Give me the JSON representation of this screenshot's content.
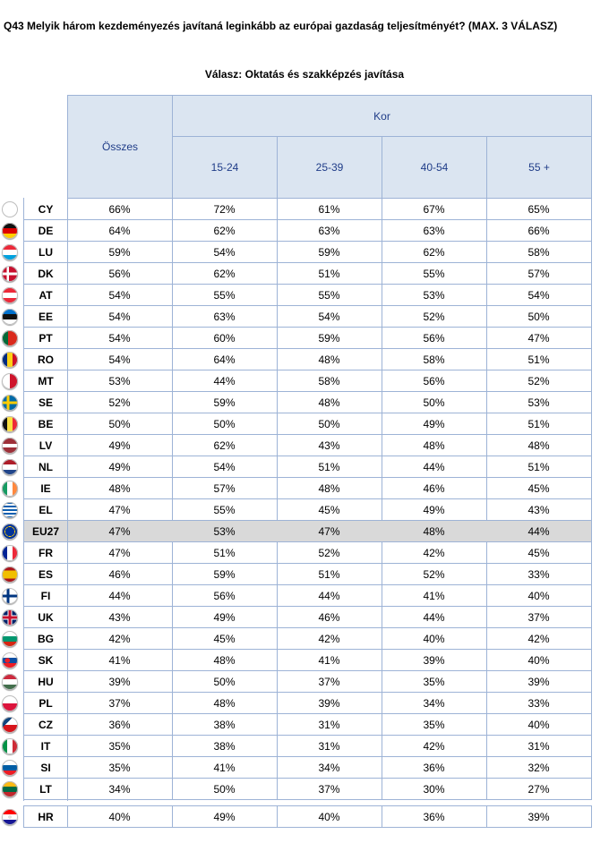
{
  "question": "Q43 Melyik három kezdeményezés javítaná leginkább az európai gazdaság teljesítményét? (MAX. 3 VÁLASZ)",
  "answer_label": "Válasz: Oktatás és szakképzés javítása",
  "header": {
    "total": "Összes",
    "age_group": "Kor",
    "age_columns": [
      "15-24",
      "25-39",
      "40-54",
      "55 +"
    ]
  },
  "colors": {
    "header_bg": "#dbe5f1",
    "border": "#9db3d6",
    "header_text": "#1f3c88",
    "highlight_row": "#d9d9d9"
  },
  "rows": [
    {
      "code": "CY",
      "flag": "flag-cyprus-icon",
      "values": [
        "66%",
        "72%",
        "61%",
        "67%",
        "65%"
      ]
    },
    {
      "code": "DE",
      "flag": "flag-germany-icon",
      "values": [
        "64%",
        "62%",
        "63%",
        "63%",
        "66%"
      ]
    },
    {
      "code": "LU",
      "flag": "flag-luxembourg-icon",
      "values": [
        "59%",
        "54%",
        "59%",
        "62%",
        "58%"
      ]
    },
    {
      "code": "DK",
      "flag": "flag-denmark-icon",
      "values": [
        "56%",
        "62%",
        "51%",
        "55%",
        "57%"
      ]
    },
    {
      "code": "AT",
      "flag": "flag-austria-icon",
      "values": [
        "54%",
        "55%",
        "55%",
        "53%",
        "54%"
      ]
    },
    {
      "code": "EE",
      "flag": "flag-estonia-icon",
      "values": [
        "54%",
        "63%",
        "54%",
        "52%",
        "50%"
      ]
    },
    {
      "code": "PT",
      "flag": "flag-portugal-icon",
      "values": [
        "54%",
        "60%",
        "59%",
        "56%",
        "47%"
      ]
    },
    {
      "code": "RO",
      "flag": "flag-romania-icon",
      "values": [
        "54%",
        "64%",
        "48%",
        "58%",
        "51%"
      ]
    },
    {
      "code": "MT",
      "flag": "flag-malta-icon",
      "values": [
        "53%",
        "44%",
        "58%",
        "56%",
        "52%"
      ]
    },
    {
      "code": "SE",
      "flag": "flag-sweden-icon",
      "values": [
        "52%",
        "59%",
        "48%",
        "50%",
        "53%"
      ]
    },
    {
      "code": "BE",
      "flag": "flag-belgium-icon",
      "values": [
        "50%",
        "50%",
        "50%",
        "49%",
        "51%"
      ]
    },
    {
      "code": "LV",
      "flag": "flag-latvia-icon",
      "values": [
        "49%",
        "62%",
        "43%",
        "48%",
        "48%"
      ]
    },
    {
      "code": "NL",
      "flag": "flag-netherlands-icon",
      "values": [
        "49%",
        "54%",
        "51%",
        "44%",
        "51%"
      ]
    },
    {
      "code": "IE",
      "flag": "flag-ireland-icon",
      "values": [
        "48%",
        "57%",
        "48%",
        "46%",
        "45%"
      ]
    },
    {
      "code": "EL",
      "flag": "flag-greece-icon",
      "values": [
        "47%",
        "55%",
        "45%",
        "49%",
        "43%"
      ]
    },
    {
      "code": "EU27",
      "flag": "flag-eu-icon",
      "values": [
        "47%",
        "53%",
        "47%",
        "48%",
        "44%"
      ],
      "highlight": true
    },
    {
      "code": "FR",
      "flag": "flag-france-icon",
      "values": [
        "47%",
        "51%",
        "52%",
        "42%",
        "45%"
      ]
    },
    {
      "code": "ES",
      "flag": "flag-spain-icon",
      "values": [
        "46%",
        "59%",
        "51%",
        "52%",
        "33%"
      ]
    },
    {
      "code": "FI",
      "flag": "flag-finland-icon",
      "values": [
        "44%",
        "56%",
        "44%",
        "41%",
        "40%"
      ]
    },
    {
      "code": "UK",
      "flag": "flag-uk-icon",
      "values": [
        "43%",
        "49%",
        "46%",
        "44%",
        "37%"
      ]
    },
    {
      "code": "BG",
      "flag": "flag-bulgaria-icon",
      "values": [
        "42%",
        "45%",
        "42%",
        "40%",
        "42%"
      ]
    },
    {
      "code": "SK",
      "flag": "flag-slovakia-icon",
      "values": [
        "41%",
        "48%",
        "41%",
        "39%",
        "40%"
      ]
    },
    {
      "code": "HU",
      "flag": "flag-hungary-icon",
      "values": [
        "39%",
        "50%",
        "37%",
        "35%",
        "39%"
      ]
    },
    {
      "code": "PL",
      "flag": "flag-poland-icon",
      "values": [
        "37%",
        "48%",
        "39%",
        "34%",
        "33%"
      ]
    },
    {
      "code": "CZ",
      "flag": "flag-czechia-icon",
      "values": [
        "36%",
        "38%",
        "31%",
        "35%",
        "40%"
      ]
    },
    {
      "code": "IT",
      "flag": "flag-italy-icon",
      "values": [
        "35%",
        "38%",
        "31%",
        "42%",
        "31%"
      ]
    },
    {
      "code": "SI",
      "flag": "flag-slovenia-icon",
      "values": [
        "35%",
        "41%",
        "34%",
        "36%",
        "32%"
      ]
    },
    {
      "code": "LT",
      "flag": "flag-lithuania-icon",
      "values": [
        "34%",
        "50%",
        "37%",
        "30%",
        "27%"
      ]
    }
  ],
  "extra_row": {
    "code": "HR",
    "flag": "flag-croatia-icon",
    "values": [
      "40%",
      "49%",
      "40%",
      "36%",
      "39%"
    ]
  }
}
